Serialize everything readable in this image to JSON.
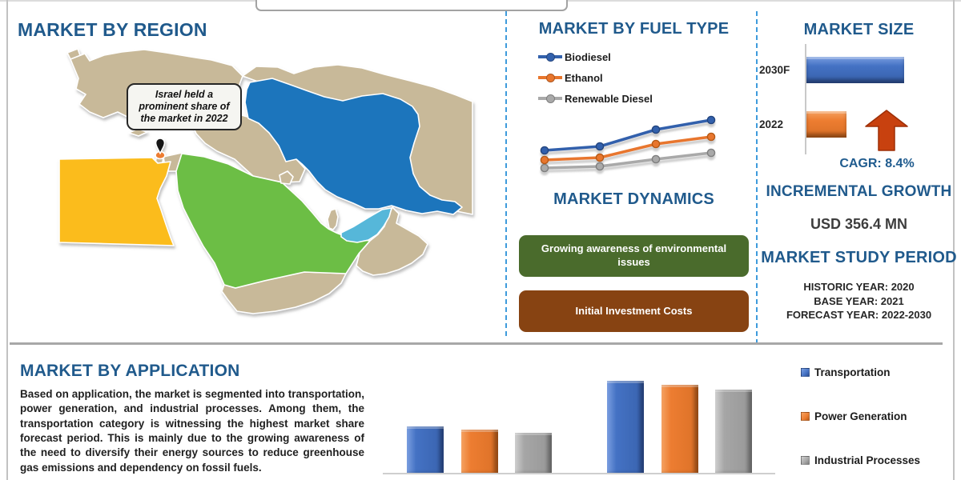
{
  "region_section": {
    "title": "MARKET BY REGION",
    "callout_text": "Israel held a prominent share of the market in 2022",
    "map": {
      "marker_country": "Israel",
      "marker_color": "#ed7d31",
      "countries": [
        {
          "name": "Iran",
          "color": "#1b75bc"
        },
        {
          "name": "Saudi Arabia",
          "color": "#6cbe45"
        },
        {
          "name": "Egypt",
          "color": "#fbbc1c"
        },
        {
          "name": "United Arab Emirates",
          "color": "#56b7d9"
        },
        {
          "name": "Rest of Middle East",
          "color": "#c8b999"
        }
      ]
    }
  },
  "fuel_section": {
    "title": "MARKET BY FUEL TYPE"
  },
  "dynamics_section": {
    "title": "MARKET DYNAMICS",
    "drivers": [
      {
        "label": "Growing awareness of environmental issues",
        "color": "#4a6b2c"
      },
      {
        "label": "Initial Investment Costs",
        "color": "#874312"
      }
    ]
  },
  "market_size_section": {
    "title": "MARKET SIZE",
    "cagr_text": "CAGR:  8.4%",
    "incremental_growth_title": "INCREMENTAL GROWTH",
    "incremental_growth_value": "USD 356.4 MN",
    "study_period_title": "MARKET STUDY PERIOD",
    "historic_year": "HISTORIC YEAR: 2020",
    "base_year": "BASE YEAR: 2021",
    "forecast_year": "FORECAST YEAR: 2022-2030"
  },
  "application_section": {
    "title": "MARKET BY APPLICATION",
    "paragraph": "Based on application, the market is segmented into transportation, power generation, and industrial processes. Among them, the transportation category is witnessing the highest market share forecast period. This is mainly due to the growing awareness of the need to diversify their energy sources to reduce greenhouse gas emissions and dependency on fossil fuels."
  },
  "chart_data": [
    {
      "id": "fuel_type_trend",
      "type": "line",
      "title": "MARKET BY FUEL TYPE",
      "x": [
        1,
        2,
        3,
        4
      ],
      "x_tick_labels": [],
      "axes_visible": false,
      "legend_position": "top-left",
      "units": "relative index (no axis shown)",
      "series": [
        {
          "name": "Biodiesel",
          "color": "#3361ac",
          "values": [
            30,
            35,
            56,
            68
          ]
        },
        {
          "name": "Ethanol",
          "color": "#e8762d",
          "values": [
            18,
            21,
            38,
            47
          ]
        },
        {
          "name": "Renewable Diesel",
          "color": "#a9a9a9",
          "values": [
            8,
            10,
            19,
            27
          ]
        }
      ]
    },
    {
      "id": "market_size",
      "type": "bar",
      "orientation": "horizontal",
      "title": "MARKET SIZE",
      "categories": [
        "2030F",
        "2022"
      ],
      "values": [
        100,
        41
      ],
      "units": "relative bar length (% of 2030F)",
      "colors": [
        "#4472c4",
        "#ed7d31"
      ],
      "annotations": [
        "CAGR:  8.4%"
      ]
    },
    {
      "id": "application_comparison",
      "type": "bar",
      "orientation": "vertical",
      "title": "MARKET BY APPLICATION",
      "categories": [
        "",
        ""
      ],
      "axes_visible": false,
      "legend_position": "right",
      "units": "relative height (no axis shown)",
      "series": [
        {
          "name": "Transportation",
          "color": "#4472c4",
          "values": [
            58,
            115
          ]
        },
        {
          "name": "Power Generation",
          "color": "#ed7d31",
          "values": [
            54,
            110
          ]
        },
        {
          "name": "Industrial Processes",
          "color": "#a6a6a6",
          "values": [
            50,
            104
          ]
        }
      ]
    }
  ]
}
